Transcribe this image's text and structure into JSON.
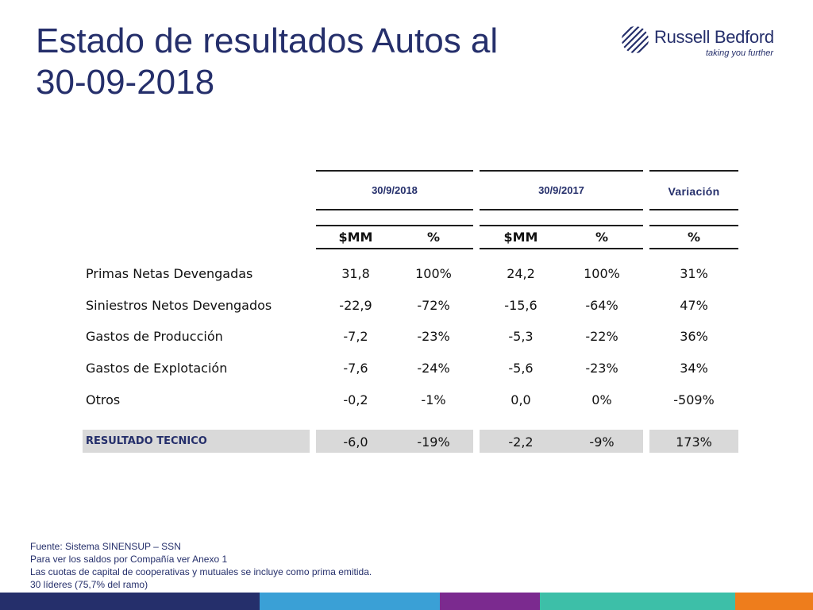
{
  "title": {
    "line1": "Estado de resultados Autos al",
    "line2": "30-09-2018"
  },
  "logo": {
    "name": "Russell Bedford",
    "tagline": "taking you further",
    "color": "#252f6b"
  },
  "table": {
    "periods": [
      "30/9/2018",
      "30/9/2017"
    ],
    "variation_header": "Variación",
    "units": [
      "$MM",
      "%",
      "$MM",
      "%",
      "%"
    ],
    "rows": [
      {
        "label": "Primas Netas Devengadas",
        "values": [
          "31,8",
          "100%",
          "24,2",
          "100%",
          "31%"
        ]
      },
      {
        "label": "Siniestros Netos Devengados",
        "values": [
          "-22,9",
          "-72%",
          "-15,6",
          "-64%",
          "47%"
        ]
      },
      {
        "label": "Gastos de Producción",
        "values": [
          "-7,2",
          "-23%",
          "-5,3",
          "-22%",
          "36%"
        ]
      },
      {
        "label": "Gastos de Explotación",
        "values": [
          "-7,6",
          "-24%",
          "-5,6",
          "-23%",
          "34%"
        ]
      },
      {
        "label": "Otros",
        "values": [
          "-0,2",
          "-1%",
          "0,0",
          "0%",
          "-509%"
        ]
      }
    ],
    "result": {
      "label": "RESULTADO TECNICO",
      "values": [
        "-6,0",
        "-19%",
        "-2,2",
        "-9%",
        "173%"
      ]
    }
  },
  "footnotes": [
    "Fuente: Sistema SINENSUP – SSN",
    "Para ver los saldos por Compañía ver Anexo  1",
    "Las cuotas de capital de cooperativas y mutuales se incluye como prima emitida.",
    "30 líderes (75,7% del ramo)"
  ],
  "colors": {
    "title": "#252f6b",
    "bar": [
      "#252f6b",
      "#3aa0d6",
      "#7b2a8f",
      "#3dbfa8",
      "#ee7d1c"
    ]
  }
}
